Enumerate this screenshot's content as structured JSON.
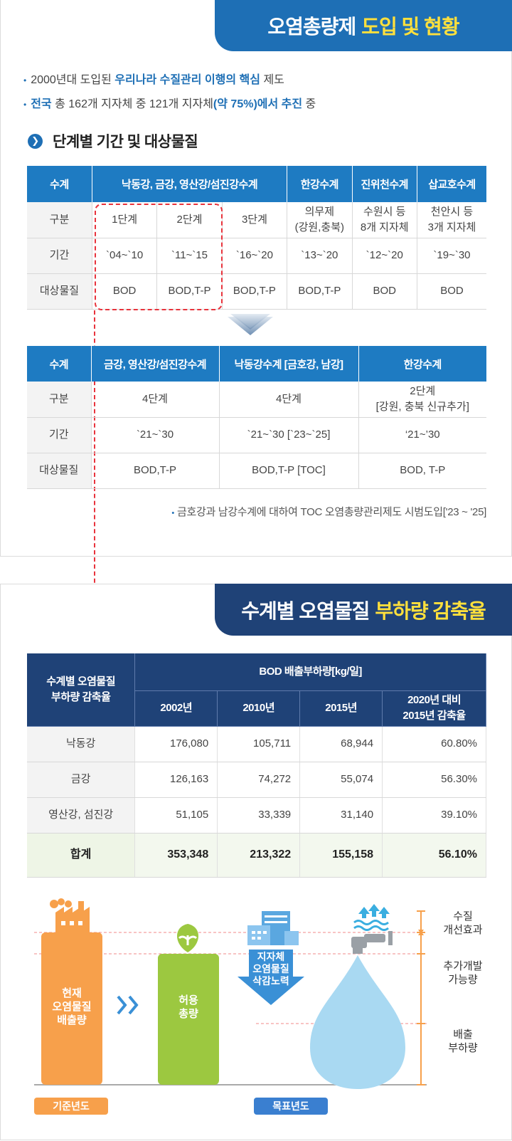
{
  "section1": {
    "title_main": "오염총량제",
    "title_highlight": "도입 및 현황",
    "bullet1": {
      "pre": "2000년대 도입된 ",
      "highlight": "우리나라 수질관리 이행의 핵심",
      "post": " 제도"
    },
    "bullet2": {
      "hl1": "전국",
      "mid": " 총 162개 지자체 중 121개 지자체",
      "hl2": "(약 75%)에서 추진",
      "post": " 중"
    },
    "subheading": "단계별 기간 및 대상물질",
    "table1": {
      "headers": [
        "수계",
        "낙동강, 금강, 영산강/섬진강수계",
        "한강수계",
        "진위천수계",
        "삽교호수계"
      ],
      "rows": [
        {
          "label": "구분",
          "cells": [
            "1단계",
            "2단계",
            "3단계",
            "의무제\n(강원,충북)",
            "수원시 등\n8개 지자체",
            "천안시 등\n3개 지자체"
          ]
        },
        {
          "label": "기간",
          "cells": [
            "`04~`10",
            "`11~`15",
            "`16~`20",
            "`13~`20",
            "`12~`20",
            "`19~`30"
          ]
        },
        {
          "label": "대상물질",
          "cells": [
            "BOD",
            "BOD,T-P",
            "BOD,T-P",
            "BOD,T-P",
            "BOD",
            "BOD"
          ]
        }
      ]
    },
    "table2": {
      "headers": [
        "수계",
        "금강, 영산강/섬진강수계",
        "낙동강수계 [금호강, 남강]",
        "한강수계"
      ],
      "rows": [
        {
          "label": "구분",
          "cells": [
            "4단계",
            "4단계",
            "2단계\n[강원, 충북 신규추가]"
          ]
        },
        {
          "label": "기간",
          "cells": [
            "`21~`30",
            "`21~`30 [`23~`25]",
            "‘21~’30"
          ]
        },
        {
          "label": "대상물질",
          "cells": [
            "BOD,T-P",
            "BOD,T-P [TOC]",
            "BOD, T-P"
          ]
        }
      ]
    },
    "note": "금호강과 남강수계에 대하여 TOC 오염총량관리제도 시범도입['23 ~ '25]"
  },
  "section2": {
    "title_main": "수계별 오염물질",
    "title_highlight": "부하량 감축율",
    "table3": {
      "corner": "수계별 오염물질\n부하량 감축율",
      "group_header": "BOD 배출부하량[kg/일]",
      "years": [
        "2002년",
        "2010년",
        "2015년",
        "2020년 대비\n2015년 감축율"
      ],
      "rows": [
        {
          "label": "낙동강",
          "cells": [
            "176,080",
            "105,711",
            "68,944",
            "60.80%"
          ]
        },
        {
          "label": "금강",
          "cells": [
            "126,163",
            "74,272",
            "55,074",
            "56.30%"
          ]
        },
        {
          "label": "영산강, 섬진강",
          "cells": [
            "51,105",
            "33,339",
            "31,140",
            "39.10%"
          ]
        },
        {
          "label": "합계",
          "cells": [
            "353,348",
            "213,322",
            "155,158",
            "56.10%"
          ]
        }
      ]
    },
    "diagram": {
      "current": "현재\n오염물질\n배출량",
      "allowed": "허용\n총량",
      "reduction": "지자체\n오염물질\n삭감노력",
      "right1": "수질\n개선효과",
      "right2": "추가개발\n가능량",
      "right3": "배출\n부하량",
      "pill_base": "기준년도",
      "pill_target": "목표년도",
      "colors": {
        "orange": "#f7a04b",
        "green": "#9cc840",
        "blue": "#3a90d6",
        "water": "#a9d9f2",
        "navy": "#1f4277"
      }
    }
  }
}
